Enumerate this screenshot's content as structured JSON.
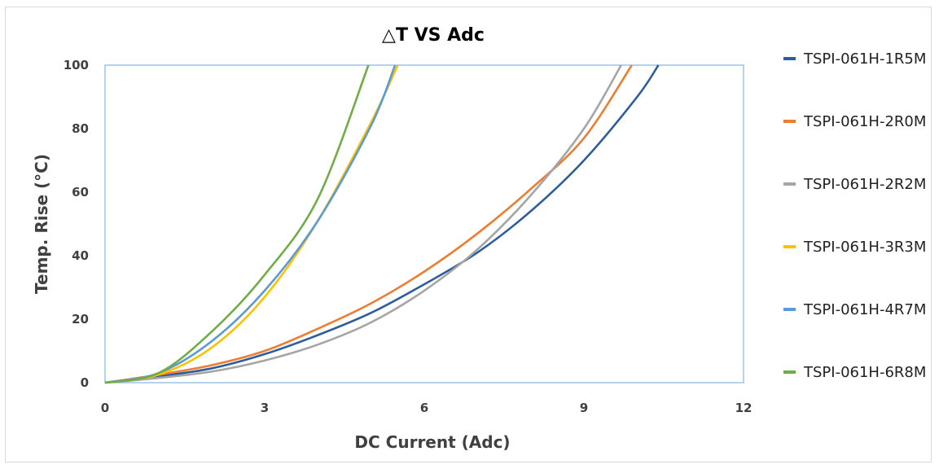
{
  "chart_data": {
    "type": "line",
    "title": "△T VS Adc",
    "xlabel": "DC Current (Adc)",
    "ylabel": "Temp. Rise (°C)",
    "xlim": [
      0,
      12
    ],
    "ylim": [
      0,
      100
    ],
    "xticks": [
      "0",
      "3",
      "6",
      "9",
      "12"
    ],
    "yticks": [
      "0",
      "20",
      "40",
      "60",
      "80",
      "100"
    ],
    "grid": false,
    "legend_position": "right",
    "series": [
      {
        "name": "TSPI-061H-1R5M",
        "color": "#2e5d9e",
        "x": [
          0,
          1,
          2,
          3,
          4,
          5,
          6,
          7,
          8,
          9,
          10,
          10.4
        ],
        "y": [
          0,
          2,
          4.5,
          9,
          15,
          22,
          31,
          41,
          54,
          70,
          90,
          100
        ]
      },
      {
        "name": "TSPI-061H-2R0M",
        "color": "#ed7d31",
        "x": [
          0,
          1,
          2,
          3,
          4,
          5,
          6,
          7,
          8,
          9,
          9.9
        ],
        "y": [
          0,
          2.5,
          5.5,
          10,
          17,
          25,
          35,
          47,
          61,
          77,
          100
        ]
      },
      {
        "name": "TSPI-061H-2R2M",
        "color": "#a5a5a5",
        "x": [
          0,
          1,
          2,
          3,
          4,
          5,
          6,
          7,
          8,
          9,
          9.7
        ],
        "y": [
          0,
          1.5,
          3.5,
          7,
          12,
          19,
          29,
          42,
          59,
          80,
          100
        ]
      },
      {
        "name": "TSPI-061H-3R3M",
        "color": "#ffc000",
        "x": [
          0,
          1,
          2,
          3,
          4,
          5,
          5.5
        ],
        "y": [
          0,
          2.5,
          11,
          27,
          51,
          82,
          100
        ]
      },
      {
        "name": "TSPI-061H-4R7M",
        "color": "#5b9bd5",
        "x": [
          0,
          1,
          2,
          3,
          4,
          5,
          5.45
        ],
        "y": [
          0,
          3,
          13,
          29,
          51,
          81,
          100
        ]
      },
      {
        "name": "TSPI-061H-6R8M",
        "color": "#70ad47",
        "x": [
          0,
          1,
          2,
          3,
          4,
          4.95
        ],
        "y": [
          0,
          3,
          16,
          34,
          58,
          100
        ]
      }
    ]
  }
}
